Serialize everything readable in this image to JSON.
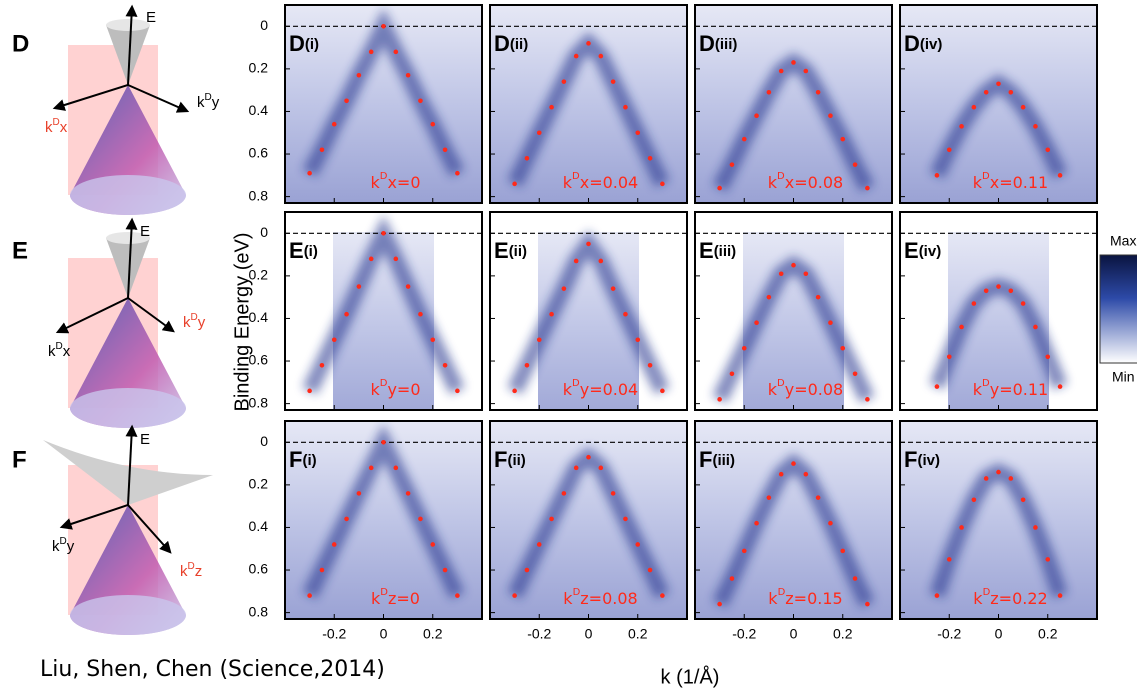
{
  "figure": {
    "citation": "Liu, Shen, Chen (Science,2014)",
    "y_axis_label": "Binding Energy (eV)",
    "x_axis_label": "k (1/Å)",
    "colorbar": {
      "max": "Max",
      "min": "Min"
    },
    "xlim": [
      -0.4,
      0.4
    ],
    "ylim": [
      -0.1,
      0.83
    ],
    "xticks": [
      -0.2,
      0,
      0.2
    ],
    "yticks": [
      0,
      0.2,
      0.4,
      0.6,
      0.8
    ],
    "k": [
      -0.3,
      -0.25,
      -0.2,
      -0.15,
      -0.1,
      -0.05,
      0,
      0.05,
      0.1,
      0.15,
      0.2,
      0.25,
      0.3
    ],
    "rows": [
      {
        "letter": "D",
        "diagram": {
          "axis": "E",
          "left": {
            "text": "k",
            "sup": "D",
            "sub": "x"
          },
          "right": {
            "text": "k",
            "sup": "D",
            "sub": "y"
          }
        },
        "panels": [
          {
            "sub": "(i)",
            "label": {
              "text": "k",
              "sup": "D",
              "tail": "x=0"
            },
            "energies": [
              0.69,
              0.58,
              0.46,
              0.35,
              0.23,
              0.12,
              0,
              0.12,
              0.23,
              0.35,
              0.46,
              0.58,
              0.69
            ]
          },
          {
            "sub": "(ii)",
            "label": {
              "text": "k",
              "sup": "D",
              "tail": "x=0.04"
            },
            "energies": [
              0.74,
              0.62,
              0.5,
              0.38,
              0.26,
              0.14,
              0.08,
              0.14,
              0.26,
              0.38,
              0.5,
              0.62,
              0.74
            ]
          },
          {
            "sub": "(iii)",
            "label": {
              "text": "k",
              "sup": "D",
              "tail": "x=0.08"
            },
            "energies": [
              0.76,
              0.65,
              0.53,
              0.42,
              0.31,
              0.21,
              0.17,
              0.21,
              0.31,
              0.42,
              0.53,
              0.65,
              0.76
            ]
          },
          {
            "sub": "(iv)",
            "label": {
              "text": "k",
              "sup": "D",
              "tail": "x=0.11"
            },
            "energies": [
              null,
              0.7,
              0.58,
              0.47,
              0.38,
              0.31,
              0.27,
              0.31,
              0.38,
              0.47,
              0.58,
              0.7,
              null
            ]
          }
        ]
      },
      {
        "letter": "E",
        "diagram": {
          "axis": "E",
          "left": {
            "text": "k",
            "sup": "D",
            "sub": "x"
          },
          "right": {
            "text": "k",
            "sup": "D",
            "sub": "y"
          }
        },
        "panels": [
          {
            "sub": "(i)",
            "label": {
              "text": "k",
              "sup": "D",
              "tail": "y=0"
            },
            "energies": [
              0.74,
              0.62,
              0.5,
              0.38,
              0.25,
              0.12,
              0,
              0.12,
              0.25,
              0.38,
              0.5,
              0.62,
              0.74
            ]
          },
          {
            "sub": "(ii)",
            "label": {
              "text": "k",
              "sup": "D",
              "tail": "y=0.04"
            },
            "energies": [
              0.74,
              0.62,
              0.5,
              0.38,
              0.26,
              0.13,
              0.05,
              0.13,
              0.26,
              0.38,
              0.5,
              0.62,
              0.74
            ]
          },
          {
            "sub": "(iii)",
            "label": {
              "text": "k",
              "sup": "D",
              "tail": "y=0.08"
            },
            "energies": [
              0.78,
              0.66,
              0.54,
              0.42,
              0.3,
              0.19,
              0.15,
              0.19,
              0.3,
              0.42,
              0.54,
              0.66,
              0.78
            ]
          },
          {
            "sub": "(iv)",
            "label": {
              "text": "k",
              "sup": "D",
              "tail": "y=0.11"
            },
            "energies": [
              null,
              0.72,
              0.58,
              0.44,
              0.33,
              0.27,
              0.25,
              0.27,
              0.33,
              0.44,
              0.58,
              0.72,
              null
            ]
          }
        ]
      },
      {
        "letter": "F",
        "diagram": {
          "axis": "E",
          "left": {
            "text": "k",
            "sup": "D",
            "sub": "y"
          },
          "right": {
            "text": "k",
            "sup": "D",
            "sub": "z"
          }
        },
        "panels": [
          {
            "sub": "(i)",
            "label": {
              "text": "k",
              "sup": "D",
              "tail": "z=0"
            },
            "energies": [
              0.72,
              0.6,
              0.48,
              0.36,
              0.24,
              0.12,
              0,
              0.12,
              0.24,
              0.36,
              0.48,
              0.6,
              0.72
            ]
          },
          {
            "sub": "(ii)",
            "label": {
              "text": "k",
              "sup": "D",
              "tail": "z=0.08"
            },
            "energies": [
              0.72,
              0.6,
              0.48,
              0.36,
              0.24,
              0.12,
              0.07,
              0.12,
              0.24,
              0.36,
              0.48,
              0.6,
              0.72
            ]
          },
          {
            "sub": "(iii)",
            "label": {
              "text": "k",
              "sup": "D",
              "tail": "z=0.15"
            },
            "energies": [
              0.76,
              0.64,
              0.51,
              0.38,
              0.26,
              0.15,
              0.1,
              0.15,
              0.26,
              0.38,
              0.51,
              0.64,
              0.76
            ]
          },
          {
            "sub": "(iv)",
            "label": {
              "text": "k",
              "sup": "D",
              "tail": "z=0.22"
            },
            "energies": [
              null,
              0.72,
              0.55,
              0.4,
              0.27,
              0.17,
              0.14,
              0.17,
              0.27,
              0.4,
              0.55,
              0.72,
              null
            ]
          }
        ]
      }
    ]
  }
}
